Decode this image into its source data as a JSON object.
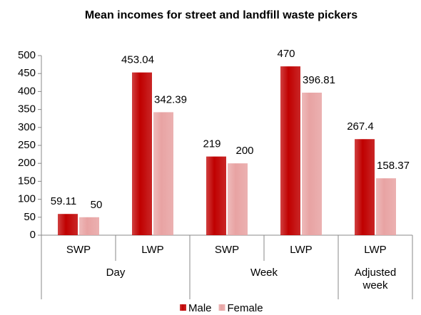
{
  "chart_data": {
    "type": "bar",
    "title": "Mean incomes for street and landfill waste pickers",
    "groups": [
      {
        "label": "Day",
        "categories": [
          "SWP",
          "LWP"
        ]
      },
      {
        "label": "Week",
        "categories": [
          "SWP",
          "LWP"
        ]
      },
      {
        "label": "Adjusted week",
        "categories": [
          "LWP"
        ]
      }
    ],
    "series": [
      {
        "name": "Male",
        "color": "#c00000",
        "values": [
          59.11,
          453.04,
          219,
          470,
          267.4
        ]
      },
      {
        "name": "Female",
        "color": "#e8a3a3",
        "values": [
          50,
          342.39,
          200,
          396.81,
          158.37
        ]
      }
    ],
    "ylim": [
      0,
      500
    ],
    "yticks": [
      0,
      50,
      100,
      150,
      200,
      250,
      300,
      350,
      400,
      450,
      500
    ],
    "legend": "bottom"
  }
}
